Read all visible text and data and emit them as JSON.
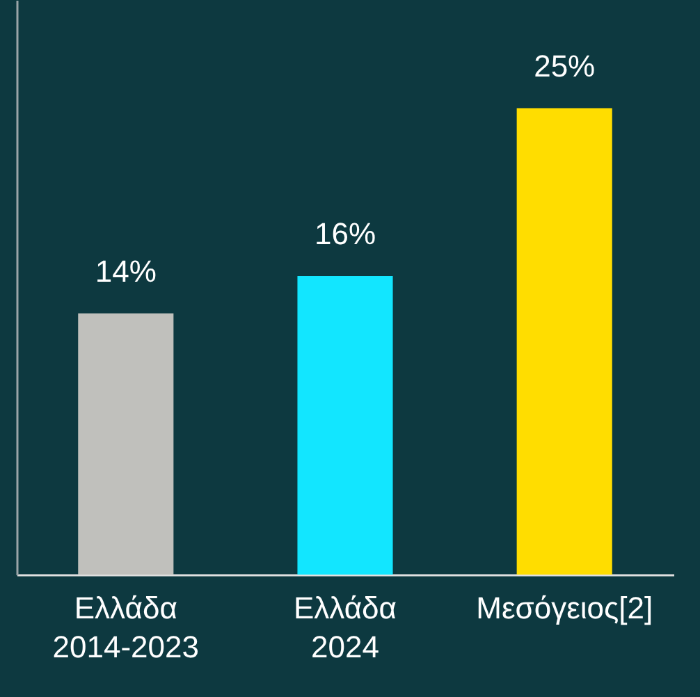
{
  "chart_data": {
    "type": "bar",
    "categories": [
      "Ελλάδα\n2014-2023",
      "Ελλάδα\n2024",
      "Μεσόγειος[2]"
    ],
    "values": [
      14,
      16,
      25
    ],
    "colors": [
      "#c0c0bc",
      "#12e6ff",
      "#ffdd00"
    ],
    "value_labels": [
      "14%",
      "16%",
      "25%"
    ],
    "ylim": [
      0,
      30.8
    ],
    "tick_labels": "x",
    "grid": false
  }
}
